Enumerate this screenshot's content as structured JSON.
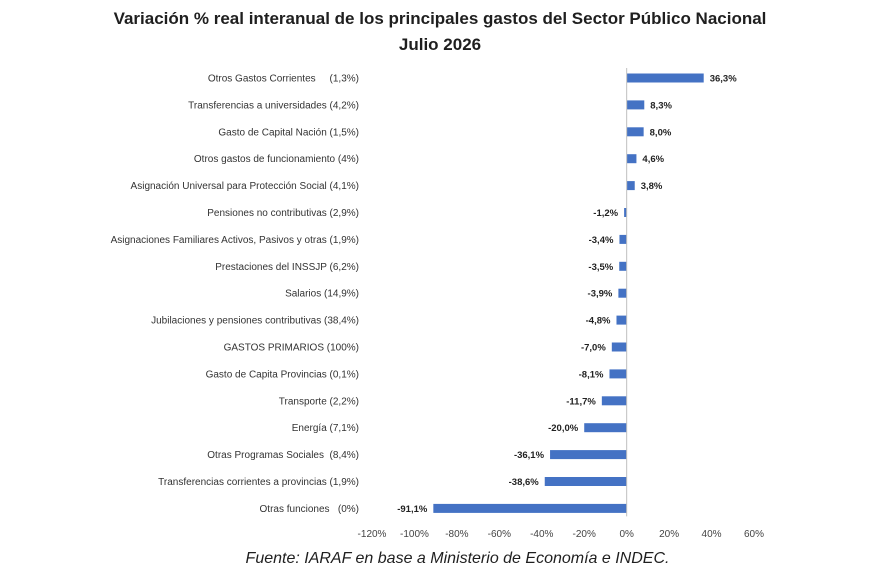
{
  "title_line1": "Variación % real interanual de los principales gastos del Sector Público Nacional",
  "title_line2": "Julio 2026",
  "source": "Fuente: IARAF en base a Ministerio de Economía e INDEC.",
  "chart_data": {
    "type": "bar",
    "orientation": "horizontal",
    "categories": [
      "Otros Gastos Corrientes     (1,3%)",
      "Transferencias a universidades (4,2%)",
      "Gasto de Capital Nación (1,5%)",
      "Otros gastos de funcionamiento (4%)",
      "Asignación Universal para Protección Social (4,1%)",
      "Pensiones no contributivas (2,9%)",
      "Asignaciones Familiares Activos, Pasivos y otras (1,9%)",
      "Prestaciones del INSSJP (6,2%)",
      "Salarios (14,9%)",
      "Jubilaciones y pensiones contributivas (38,4%)",
      "GASTOS PRIMARIOS (100%)",
      "Gasto de Capita Provincias (0,1%)",
      "Transporte (2,2%)",
      "Energía (7,1%)",
      "Otras Programas Sociales  (8,4%)",
      "Transferencias corrientes a provincias (1,9%)",
      "Otras funciones   (0%)"
    ],
    "values": [
      36.3,
      8.3,
      8.0,
      4.6,
      3.8,
      -1.2,
      -3.4,
      -3.5,
      -3.9,
      -4.8,
      -7.0,
      -8.1,
      -11.7,
      -20.0,
      -36.1,
      -38.6,
      -91.1
    ],
    "value_labels": [
      "36,3%",
      "8,3%",
      "8,0%",
      "4,6%",
      "3,8%",
      "-1,2%",
      "-3,4%",
      "-3,5%",
      "-3,9%",
      "-4,8%",
      "-7,0%",
      "-8,1%",
      "-11,7%",
      "-20,0%",
      "-36,1%",
      "-38,6%",
      "-91,1%"
    ],
    "xlim": [
      -120,
      60
    ],
    "xticks": [
      -120,
      -100,
      -80,
      -60,
      -40,
      -20,
      0,
      20,
      40,
      60
    ],
    "xtick_labels": [
      "-120%",
      "-100%",
      "-80%",
      "-60%",
      "-40%",
      "-20%",
      "0%",
      "20%",
      "40%",
      "60%"
    ],
    "bar_color": "#4472C4",
    "grid": false,
    "legend": "none"
  }
}
